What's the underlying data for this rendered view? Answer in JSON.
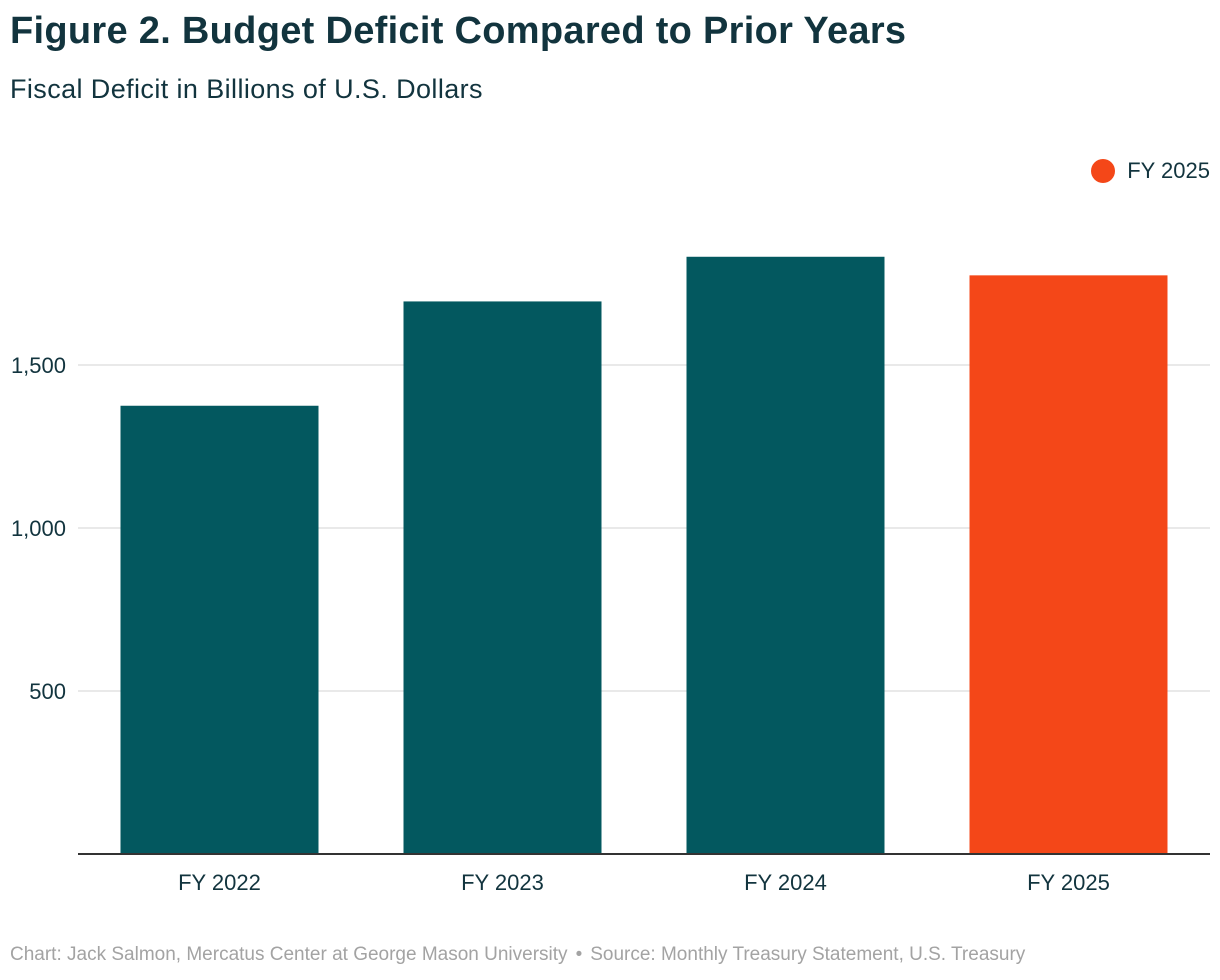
{
  "chart_data": {
    "type": "bar",
    "title": "Figure 2. Budget Deficit Compared to Prior Years",
    "subtitle": "Fiscal Deficit in Billions of U.S. Dollars",
    "categories": [
      "FY 2022",
      "FY 2023",
      "FY 2024",
      "FY 2025"
    ],
    "values": [
      1375,
      1695,
      1832,
      1775
    ],
    "highlight_index": 3,
    "colors": {
      "default": "#03585f",
      "highlight": "#f44718",
      "grid": "#e2e2e2",
      "axis": "#333333"
    },
    "ylim": [
      0,
      1920
    ],
    "yticks": [
      500,
      1000,
      1500
    ],
    "ytick_labels": [
      "500",
      "1,000",
      "1,500"
    ],
    "xlabel": "",
    "ylabel": "",
    "grid": true,
    "legend": {
      "position": "top-right",
      "entries": [
        {
          "label": "FY 2025",
          "color": "#f44718"
        }
      ]
    }
  },
  "footer": {
    "credit": "Chart: Jack Salmon, Mercatus Center at George Mason University",
    "separator": "•",
    "source": "Source: Monthly Treasury Statement, U.S. Treasury"
  }
}
